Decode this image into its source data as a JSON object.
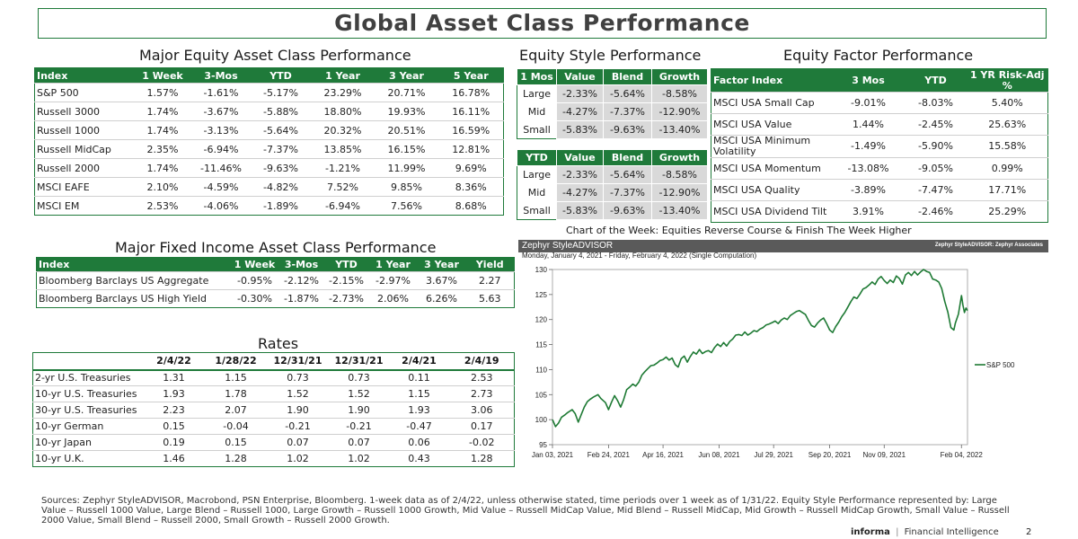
{
  "title": "Global Asset Class Performance",
  "equity": {
    "title": "Major Equity Asset Class Performance",
    "headers": [
      "Index",
      "1 Week",
      "3-Mos",
      "YTD",
      "1 Year",
      "3 Year",
      "5 Year"
    ],
    "rows": [
      [
        "S&P 500",
        "1.57%",
        "-1.61%",
        "-5.17%",
        "23.29%",
        "20.71%",
        "16.78%"
      ],
      [
        "Russell 3000",
        "1.74%",
        "-3.67%",
        "-5.88%",
        "18.80%",
        "19.93%",
        "16.11%"
      ],
      [
        "Russell 1000",
        "1.74%",
        "-3.13%",
        "-5.64%",
        "20.32%",
        "20.51%",
        "16.59%"
      ],
      [
        "Russell MidCap",
        "2.35%",
        "-6.94%",
        "-7.37%",
        "13.85%",
        "16.15%",
        "12.81%"
      ],
      [
        "Russell 2000",
        "1.74%",
        "-11.46%",
        "-9.63%",
        "-1.21%",
        "11.99%",
        "9.69%"
      ],
      [
        "MSCI EAFE",
        "2.10%",
        "-4.59%",
        "-4.82%",
        "7.52%",
        "9.85%",
        "8.36%"
      ],
      [
        "MSCI EM",
        "2.53%",
        "-4.06%",
        "-1.89%",
        "-6.94%",
        "7.56%",
        "8.68%"
      ]
    ]
  },
  "style": {
    "title": "Equity Style Performance",
    "one_month": {
      "headers": [
        "1 Mos",
        "Value",
        "Blend",
        "Growth"
      ],
      "rows": [
        [
          "Large",
          "-2.33%",
          "-5.64%",
          "-8.58%"
        ],
        [
          "Mid",
          "-4.27%",
          "-7.37%",
          "-12.90%"
        ],
        [
          "Small",
          "-5.83%",
          "-9.63%",
          "-13.40%"
        ]
      ]
    },
    "ytd": {
      "headers": [
        "YTD",
        "Value",
        "Blend",
        "Growth"
      ],
      "rows": [
        [
          "Large",
          "-2.33%",
          "-5.64%",
          "-8.58%"
        ],
        [
          "Mid",
          "-4.27%",
          "-7.37%",
          "-12.90%"
        ],
        [
          "Small",
          "-5.83%",
          "-9.63%",
          "-13.40%"
        ]
      ]
    }
  },
  "factor": {
    "title": "Equity Factor Performance",
    "headers": [
      "Factor Index",
      "3 Mos",
      "YTD",
      "1 YR Risk-Adj %"
    ],
    "rows": [
      [
        "MSCI USA Small Cap",
        "-9.01%",
        "-8.03%",
        "5.40%"
      ],
      [
        "MSCI USA Value",
        "1.44%",
        "-2.45%",
        "25.63%"
      ],
      [
        "MSCI USA Minimum Volatility",
        "-1.49%",
        "-5.90%",
        "15.58%"
      ],
      [
        "MSCI USA Momentum",
        "-13.08%",
        "-9.05%",
        "0.99%"
      ],
      [
        "MSCI USA Quality",
        "-3.89%",
        "-7.47%",
        "17.71%"
      ],
      [
        "MSCI USA Dividend Tilt",
        "3.91%",
        "-2.46%",
        "25.29%"
      ]
    ]
  },
  "fixed_income": {
    "title": "Major Fixed Income Asset Class Performance",
    "headers": [
      "Index",
      "1 Week",
      "3-Mos",
      "YTD",
      "1 Year",
      "3 Year",
      "Yield"
    ],
    "rows": [
      [
        "Bloomberg Barclays US Aggregate",
        "-0.95%",
        "-2.12%",
        "-2.15%",
        "-2.97%",
        "3.67%",
        "2.27"
      ],
      [
        "Bloomberg Barclays US High Yield",
        "-0.30%",
        "-1.87%",
        "-2.73%",
        "2.06%",
        "6.26%",
        "5.63"
      ]
    ]
  },
  "rates": {
    "title": "Rates",
    "headers": [
      "",
      "2/4/22",
      "1/28/22",
      "12/31/21",
      "12/31/21",
      "2/4/21",
      "2/4/19"
    ],
    "rows": [
      [
        "2-yr U.S. Treasuries",
        "1.31",
        "1.15",
        "0.73",
        "0.73",
        "0.11",
        "2.53"
      ],
      [
        "10-yr U.S. Treasuries",
        "1.93",
        "1.78",
        "1.52",
        "1.52",
        "1.15",
        "2.73"
      ],
      [
        "30-yr U.S. Treasuries",
        "2.23",
        "2.07",
        "1.90",
        "1.90",
        "1.93",
        "3.06"
      ],
      [
        "10-yr German",
        "0.15",
        "-0.04",
        "-0.21",
        "-0.21",
        "-0.47",
        "0.17"
      ],
      [
        "10-yr Japan",
        "0.19",
        "0.15",
        "0.07",
        "0.07",
        "0.06",
        "-0.02"
      ],
      [
        "10-yr U.K.",
        "1.46",
        "1.28",
        "1.02",
        "1.02",
        "0.43",
        "1.28"
      ]
    ]
  },
  "chart": {
    "caption": "Chart of the Week: Equities Reverse Course & Finish The Week Higher",
    "brand": "Zephyr StyleADVISOR",
    "brand_right": "Zephyr StyleADVISOR: Zephyr Associates",
    "subtitle": "Monday, January 4, 2021 - Friday, February 4, 2022 (Single Computation)",
    "line_color": "#1e7a34"
  },
  "chart_data": {
    "type": "line",
    "title": "Chart of the Week: Equities Reverse Course & Finish The Week Higher",
    "xlabel": "",
    "ylabel": "",
    "ylim": [
      95,
      130
    ],
    "yticks": [
      95,
      100,
      105,
      110,
      115,
      120,
      125,
      130
    ],
    "x_tick_labels": [
      "Jan 03, 2021",
      "Feb 24, 2021",
      "Apr 16, 2021",
      "Jun 08, 2021",
      "Jul 29, 2021",
      "Sep 20, 2021",
      "Nov 09, 2021",
      "Feb 04, 2022"
    ],
    "x_tick_positions": [
      0,
      37,
      73,
      110,
      146,
      183,
      219,
      270
    ],
    "x_range": [
      0,
      274
    ],
    "legend": [
      "S&P 500"
    ],
    "series": [
      {
        "name": "S&P 500",
        "points": [
          [
            0,
            100.0
          ],
          [
            2,
            98.6
          ],
          [
            4,
            99.3
          ],
          [
            6,
            100.5
          ],
          [
            8,
            100.9
          ],
          [
            10,
            101.4
          ],
          [
            13,
            102.0
          ],
          [
            15,
            101.2
          ],
          [
            17,
            99.5
          ],
          [
            19,
            101.0
          ],
          [
            21,
            102.5
          ],
          [
            23,
            103.6
          ],
          [
            25,
            104.1
          ],
          [
            27,
            104.5
          ],
          [
            30,
            105.0
          ],
          [
            32,
            104.2
          ],
          [
            35,
            103.4
          ],
          [
            37,
            102.0
          ],
          [
            39,
            103.5
          ],
          [
            41,
            104.8
          ],
          [
            43,
            103.8
          ],
          [
            45,
            102.5
          ],
          [
            47,
            104.0
          ],
          [
            49,
            106.0
          ],
          [
            51,
            106.5
          ],
          [
            53,
            107.1
          ],
          [
            55,
            106.7
          ],
          [
            57,
            107.5
          ],
          [
            59,
            108.9
          ],
          [
            61,
            109.6
          ],
          [
            63,
            110.2
          ],
          [
            65,
            110.8
          ],
          [
            67,
            110.9
          ],
          [
            69,
            111.3
          ],
          [
            71,
            111.8
          ],
          [
            73,
            112.0
          ],
          [
            75,
            112.5
          ],
          [
            77,
            111.9
          ],
          [
            79,
            112.3
          ],
          [
            81,
            111.0
          ],
          [
            83,
            110.5
          ],
          [
            85,
            112.2
          ],
          [
            87,
            112.7
          ],
          [
            89,
            111.5
          ],
          [
            91,
            112.6
          ],
          [
            93,
            113.5
          ],
          [
            95,
            113.1
          ],
          [
            97,
            114.0
          ],
          [
            99,
            113.2
          ],
          [
            101,
            113.6
          ],
          [
            103,
            113.8
          ],
          [
            105,
            113.4
          ],
          [
            107,
            114.4
          ],
          [
            109,
            115.1
          ],
          [
            111,
            114.6
          ],
          [
            113,
            115.4
          ],
          [
            115,
            114.7
          ],
          [
            117,
            115.6
          ],
          [
            119,
            116.1
          ],
          [
            121,
            116.9
          ],
          [
            123,
            117.0
          ],
          [
            125,
            116.8
          ],
          [
            127,
            117.5
          ],
          [
            129,
            116.9
          ],
          [
            131,
            117.3
          ],
          [
            133,
            117.8
          ],
          [
            135,
            117.6
          ],
          [
            137,
            118.1
          ],
          [
            139,
            118.4
          ],
          [
            141,
            118.9
          ],
          [
            143,
            119.1
          ],
          [
            145,
            119.4
          ],
          [
            147,
            119.7
          ],
          [
            149,
            119.2
          ],
          [
            151,
            119.9
          ],
          [
            153,
            120.3
          ],
          [
            155,
            120.0
          ],
          [
            157,
            120.8
          ],
          [
            159,
            121.2
          ],
          [
            161,
            121.6
          ],
          [
            163,
            121.8
          ],
          [
            165,
            121.4
          ],
          [
            167,
            121.0
          ],
          [
            169,
            119.8
          ],
          [
            171,
            118.8
          ],
          [
            173,
            118.5
          ],
          [
            175,
            119.3
          ],
          [
            177,
            119.9
          ],
          [
            179,
            120.3
          ],
          [
            181,
            119.2
          ],
          [
            183,
            117.9
          ],
          [
            185,
            117.4
          ],
          [
            187,
            118.6
          ],
          [
            189,
            119.5
          ],
          [
            191,
            120.6
          ],
          [
            193,
            121.4
          ],
          [
            195,
            122.5
          ],
          [
            197,
            123.6
          ],
          [
            199,
            124.5
          ],
          [
            201,
            124.2
          ],
          [
            203,
            125.1
          ],
          [
            205,
            126.1
          ],
          [
            207,
            126.4
          ],
          [
            209,
            126.9
          ],
          [
            211,
            127.5
          ],
          [
            213,
            127.0
          ],
          [
            215,
            128.1
          ],
          [
            217,
            128.6
          ],
          [
            219,
            127.8
          ],
          [
            221,
            127.2
          ],
          [
            223,
            127.9
          ],
          [
            225,
            127.4
          ],
          [
            227,
            128.7
          ],
          [
            229,
            128.2
          ],
          [
            231,
            127.1
          ],
          [
            233,
            128.9
          ],
          [
            235,
            129.4
          ],
          [
            237,
            128.8
          ],
          [
            239,
            129.6
          ],
          [
            241,
            128.9
          ],
          [
            243,
            129.5
          ],
          [
            245,
            130.0
          ],
          [
            247,
            129.6
          ],
          [
            249,
            129.4
          ],
          [
            251,
            128.1
          ],
          [
            253,
            127.9
          ],
          [
            255,
            127.5
          ],
          [
            257,
            126.2
          ],
          [
            259,
            123.6
          ],
          [
            261,
            121.5
          ],
          [
            263,
            118.4
          ],
          [
            265,
            117.9
          ],
          [
            266,
            119.3
          ],
          [
            268,
            121.1
          ],
          [
            270,
            124.8
          ],
          [
            271,
            122.9
          ],
          [
            272,
            121.4
          ],
          [
            273,
            122.3
          ],
          [
            274,
            121.8
          ]
        ]
      }
    ]
  },
  "sources": "Sources: Zephyr StyleADVISOR, Macrobond, PSN Enterprise, Bloomberg. 1-week data as of 2/4/22, unless otherwise stated, time periods over 1 week as of 1/31/22. Equity Style Performance represented by: Large Value – Russell 1000 Value, Large Blend – Russell 1000, Large Growth – Russell 1000 Growth, Mid Value – Russell MidCap Value, Mid Blend – Russell MidCap, Mid Growth – Russell MidCap Growth, Small Value – Russell 2000 Value, Small Blend – Russell 2000, Small Growth – Russell 2000 Growth.",
  "footer": {
    "brand": "informa",
    "separator": "|",
    "text": "Financial Intelligence",
    "page": "2"
  }
}
